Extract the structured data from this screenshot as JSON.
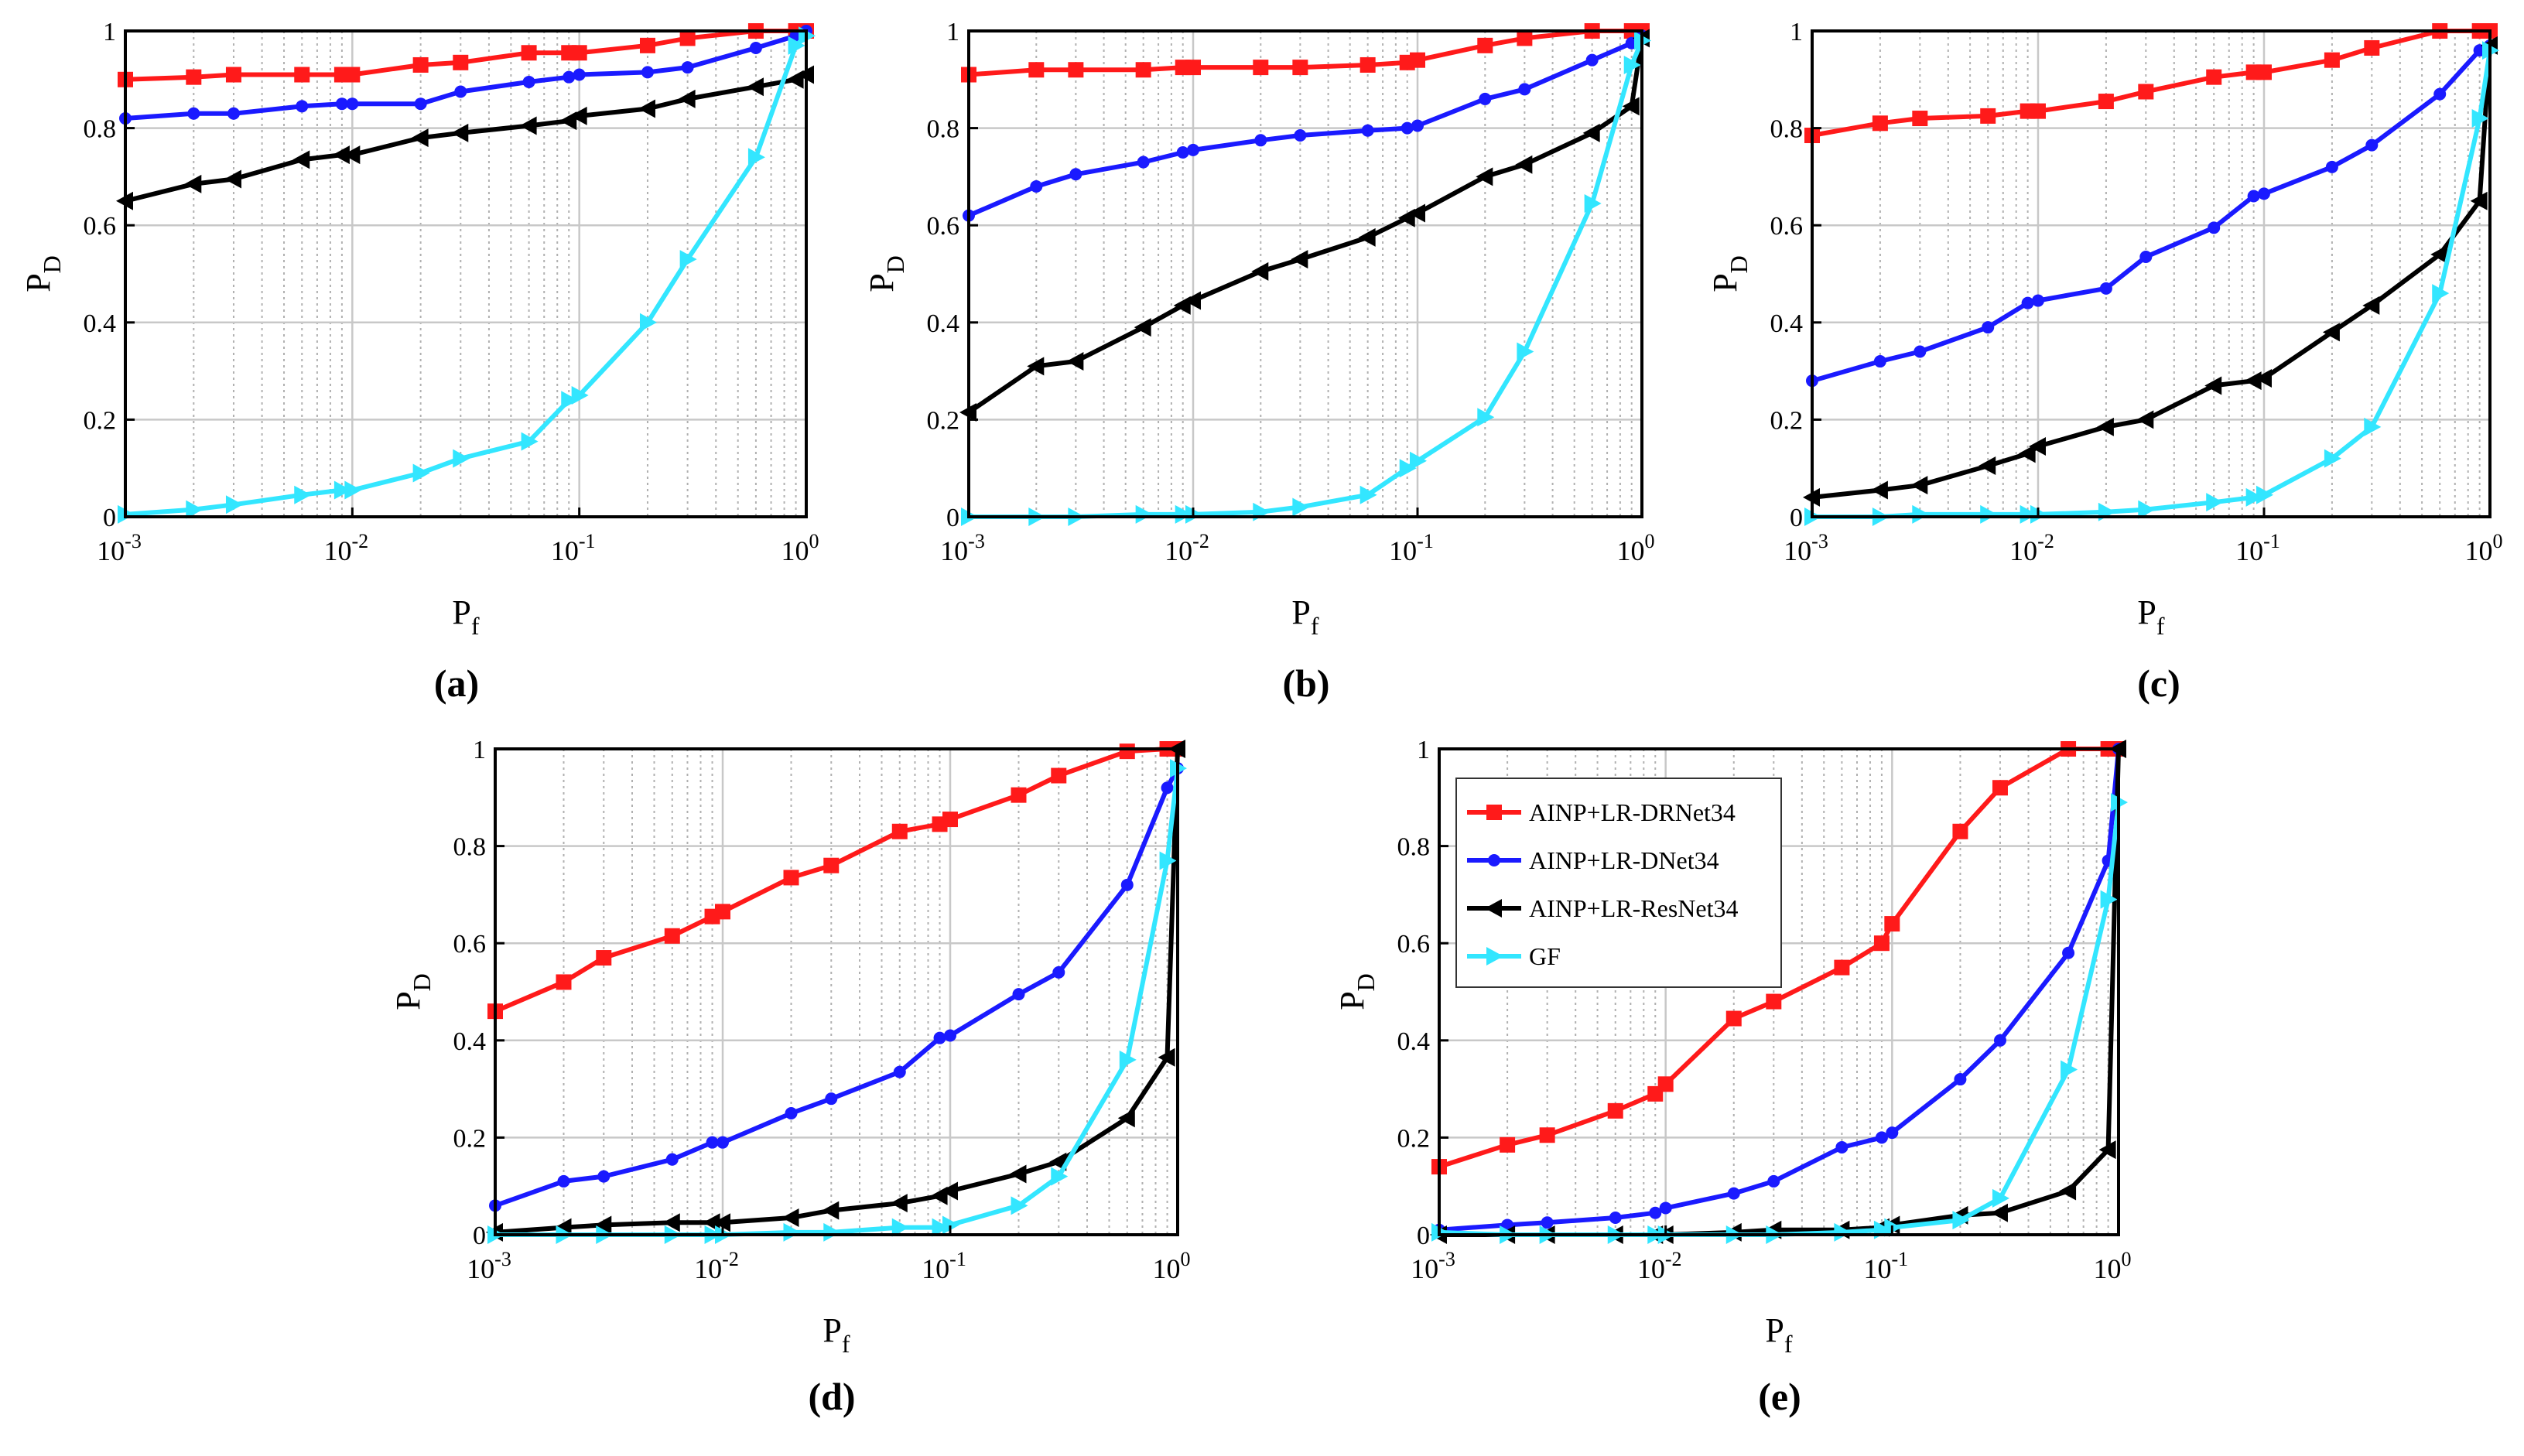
{
  "colors": {
    "drnet": "#ff1a1a",
    "dnet": "#1a1aff",
    "resnet": "#000000",
    "gf": "#33e6ff"
  },
  "legend": {
    "entries": [
      "AINP+LR-DRNet34",
      "AINP+LR-DNet34",
      "AINP+LR-ResNet34",
      "GF"
    ]
  },
  "chart_data": [
    {
      "type": "line",
      "panel_label": "(a)",
      "xlabel": "P_f",
      "ylabel": "P_D",
      "xscale": "log",
      "xlim": [
        0.001,
        1
      ],
      "ylim": [
        0,
        1
      ],
      "x_tick_labels": [
        "10^-3",
        "10^-2",
        "10^-1",
        "10^0"
      ],
      "y_tick_labels": [
        "0",
        "0.2",
        "0.4",
        "0.6",
        "0.8",
        "1"
      ],
      "grid": true,
      "x": [
        0.001,
        0.002,
        0.003,
        0.006,
        0.009,
        0.01,
        0.02,
        0.03,
        0.06,
        0.09,
        0.1,
        0.2,
        0.3,
        0.6,
        0.9,
        1.0
      ],
      "series": [
        {
          "name": "AINP+LR-DRNet34",
          "marker": "square",
          "values": [
            0.9,
            0.905,
            0.91,
            0.91,
            0.91,
            0.91,
            0.93,
            0.935,
            0.955,
            0.955,
            0.955,
            0.97,
            0.985,
            1.0,
            1.0,
            1.0
          ]
        },
        {
          "name": "AINP+LR-DNet34",
          "marker": "circle",
          "values": [
            0.82,
            0.83,
            0.83,
            0.845,
            0.85,
            0.85,
            0.85,
            0.875,
            0.895,
            0.905,
            0.91,
            0.915,
            0.925,
            0.965,
            0.99,
            1.0
          ]
        },
        {
          "name": "AINP+LR-ResNet34",
          "marker": "triangle-left",
          "values": [
            0.65,
            0.685,
            0.695,
            0.735,
            0.745,
            0.745,
            0.78,
            0.79,
            0.805,
            0.815,
            0.825,
            0.84,
            0.86,
            0.885,
            0.9,
            0.91
          ]
        },
        {
          "name": "GF",
          "marker": "triangle-right",
          "values": [
            0.005,
            0.015,
            0.025,
            0.045,
            0.055,
            0.055,
            0.09,
            0.12,
            0.155,
            0.24,
            0.25,
            0.4,
            0.53,
            0.74,
            0.97,
            0.99
          ]
        }
      ]
    },
    {
      "type": "line",
      "panel_label": "(b)",
      "xlabel": "P_f",
      "ylabel": "P_D",
      "xscale": "log",
      "xlim": [
        0.001,
        1
      ],
      "ylim": [
        0,
        1
      ],
      "x_tick_labels": [
        "10^-3",
        "10^-2",
        "10^-1",
        "10^0"
      ],
      "y_tick_labels": [
        "0",
        "0.2",
        "0.4",
        "0.6",
        "0.8",
        "1"
      ],
      "grid": true,
      "x": [
        0.001,
        0.002,
        0.003,
        0.006,
        0.009,
        0.01,
        0.02,
        0.03,
        0.06,
        0.09,
        0.1,
        0.2,
        0.3,
        0.6,
        0.9,
        1.0
      ],
      "series": [
        {
          "name": "AINP+LR-DRNet34",
          "marker": "square",
          "values": [
            0.91,
            0.92,
            0.92,
            0.92,
            0.925,
            0.925,
            0.925,
            0.925,
            0.93,
            0.935,
            0.94,
            0.97,
            0.985,
            1.0,
            1.0,
            1.0
          ]
        },
        {
          "name": "AINP+LR-DNet34",
          "marker": "circle",
          "values": [
            0.62,
            0.68,
            0.705,
            0.73,
            0.75,
            0.755,
            0.775,
            0.785,
            0.795,
            0.8,
            0.805,
            0.86,
            0.88,
            0.94,
            0.975,
            0.99
          ]
        },
        {
          "name": "AINP+LR-ResNet34",
          "marker": "triangle-left",
          "values": [
            0.215,
            0.31,
            0.32,
            0.39,
            0.435,
            0.445,
            0.505,
            0.53,
            0.575,
            0.615,
            0.625,
            0.7,
            0.725,
            0.79,
            0.845,
            0.985
          ]
        },
        {
          "name": "GF",
          "marker": "triangle-right",
          "values": [
            0.0,
            0.0,
            0.0,
            0.005,
            0.005,
            0.005,
            0.01,
            0.02,
            0.045,
            0.1,
            0.115,
            0.205,
            0.34,
            0.645,
            0.93,
            0.98
          ]
        }
      ]
    },
    {
      "type": "line",
      "panel_label": "(c)",
      "xlabel": "P_f",
      "ylabel": "P_D",
      "xscale": "log",
      "xlim": [
        0.001,
        1
      ],
      "ylim": [
        0,
        1
      ],
      "x_tick_labels": [
        "10^-3",
        "10^-2",
        "10^-1",
        "10^0"
      ],
      "y_tick_labels": [
        "0",
        "0.2",
        "0.4",
        "0.6",
        "0.8",
        "1"
      ],
      "grid": true,
      "x": [
        0.001,
        0.002,
        0.003,
        0.006,
        0.009,
        0.01,
        0.02,
        0.03,
        0.06,
        0.09,
        0.1,
        0.2,
        0.3,
        0.6,
        0.9,
        1.0
      ],
      "series": [
        {
          "name": "AINP+LR-DRNet34",
          "marker": "square",
          "values": [
            0.785,
            0.81,
            0.82,
            0.825,
            0.835,
            0.835,
            0.855,
            0.875,
            0.905,
            0.915,
            0.915,
            0.94,
            0.965,
            1.0,
            1.0,
            1.0
          ]
        },
        {
          "name": "AINP+LR-DNet34",
          "marker": "circle",
          "values": [
            0.28,
            0.32,
            0.34,
            0.39,
            0.44,
            0.445,
            0.47,
            0.535,
            0.595,
            0.66,
            0.665,
            0.72,
            0.765,
            0.87,
            0.96,
            0.97
          ]
        },
        {
          "name": "AINP+LR-ResNet34",
          "marker": "triangle-left",
          "values": [
            0.04,
            0.055,
            0.065,
            0.105,
            0.13,
            0.145,
            0.185,
            0.2,
            0.27,
            0.28,
            0.285,
            0.38,
            0.435,
            0.54,
            0.65,
            0.97
          ]
        },
        {
          "name": "GF",
          "marker": "triangle-right",
          "values": [
            0.0,
            0.0,
            0.005,
            0.005,
            0.005,
            0.005,
            0.01,
            0.015,
            0.03,
            0.04,
            0.045,
            0.12,
            0.185,
            0.46,
            0.82,
            0.96
          ]
        }
      ]
    },
    {
      "type": "line",
      "panel_label": "(d)",
      "xlabel": "P_f",
      "ylabel": "P_D",
      "xscale": "log",
      "xlim": [
        0.001,
        1
      ],
      "ylim": [
        0,
        1
      ],
      "x_tick_labels": [
        "10^-3",
        "10^-2",
        "10^-1",
        "10^0"
      ],
      "y_tick_labels": [
        "0",
        "0.2",
        "0.4",
        "0.6",
        "0.8",
        "1"
      ],
      "grid": true,
      "x": [
        0.001,
        0.002,
        0.003,
        0.006,
        0.009,
        0.01,
        0.02,
        0.03,
        0.06,
        0.09,
        0.1,
        0.2,
        0.3,
        0.6,
        0.9,
        1.0
      ],
      "series": [
        {
          "name": "AINP+LR-DRNet34",
          "marker": "square",
          "values": [
            0.46,
            0.52,
            0.57,
            0.615,
            0.655,
            0.665,
            0.735,
            0.76,
            0.83,
            0.845,
            0.855,
            0.905,
            0.945,
            0.995,
            1.0,
            1.0
          ]
        },
        {
          "name": "AINP+LR-DNet34",
          "marker": "circle",
          "values": [
            0.06,
            0.11,
            0.12,
            0.155,
            0.19,
            0.19,
            0.25,
            0.28,
            0.335,
            0.405,
            0.41,
            0.495,
            0.54,
            0.72,
            0.92,
            0.96
          ]
        },
        {
          "name": "AINP+LR-ResNet34",
          "marker": "triangle-left",
          "values": [
            0.005,
            0.015,
            0.02,
            0.025,
            0.025,
            0.025,
            0.035,
            0.05,
            0.065,
            0.08,
            0.09,
            0.125,
            0.15,
            0.24,
            0.365,
            1.0
          ]
        },
        {
          "name": "GF",
          "marker": "triangle-right",
          "values": [
            0.0,
            0.0,
            0.0,
            0.0,
            0.0,
            0.0,
            0.005,
            0.005,
            0.015,
            0.015,
            0.02,
            0.06,
            0.12,
            0.36,
            0.77,
            0.96
          ]
        }
      ]
    },
    {
      "type": "line",
      "panel_label": "(e)",
      "xlabel": "P_f",
      "ylabel": "P_D",
      "xscale": "log",
      "xlim": [
        0.001,
        1
      ],
      "ylim": [
        0,
        1
      ],
      "x_tick_labels": [
        "10^-3",
        "10^-2",
        "10^-1",
        "10^0"
      ],
      "y_tick_labels": [
        "0",
        "0.2",
        "0.4",
        "0.6",
        "0.8",
        "1"
      ],
      "grid": true,
      "legend_position": "top-left",
      "x": [
        0.001,
        0.002,
        0.003,
        0.006,
        0.009,
        0.01,
        0.02,
        0.03,
        0.06,
        0.09,
        0.1,
        0.2,
        0.3,
        0.6,
        0.9,
        1.0
      ],
      "series": [
        {
          "name": "AINP+LR-DRNet34",
          "marker": "square",
          "values": [
            0.14,
            0.185,
            0.205,
            0.255,
            0.29,
            0.31,
            0.445,
            0.48,
            0.55,
            0.6,
            0.64,
            0.83,
            0.92,
            1.0,
            1.0,
            1.0
          ]
        },
        {
          "name": "AINP+LR-DNet34",
          "marker": "circle",
          "values": [
            0.01,
            0.02,
            0.025,
            0.035,
            0.045,
            0.055,
            0.085,
            0.11,
            0.18,
            0.2,
            0.21,
            0.32,
            0.4,
            0.58,
            0.77,
            1.0
          ]
        },
        {
          "name": "AINP+LR-ResNet34",
          "marker": "triangle-left",
          "values": [
            0.0,
            0.0,
            0.0,
            0.0,
            0.0,
            0.0,
            0.005,
            0.01,
            0.01,
            0.015,
            0.02,
            0.04,
            0.045,
            0.09,
            0.175,
            1.0
          ]
        },
        {
          "name": "GF",
          "marker": "triangle-right",
          "values": [
            0.005,
            0.0,
            0.0,
            0.0,
            0.0,
            0.0,
            0.0,
            0.0,
            0.005,
            0.01,
            0.015,
            0.03,
            0.075,
            0.34,
            0.69,
            0.89
          ]
        }
      ]
    }
  ]
}
